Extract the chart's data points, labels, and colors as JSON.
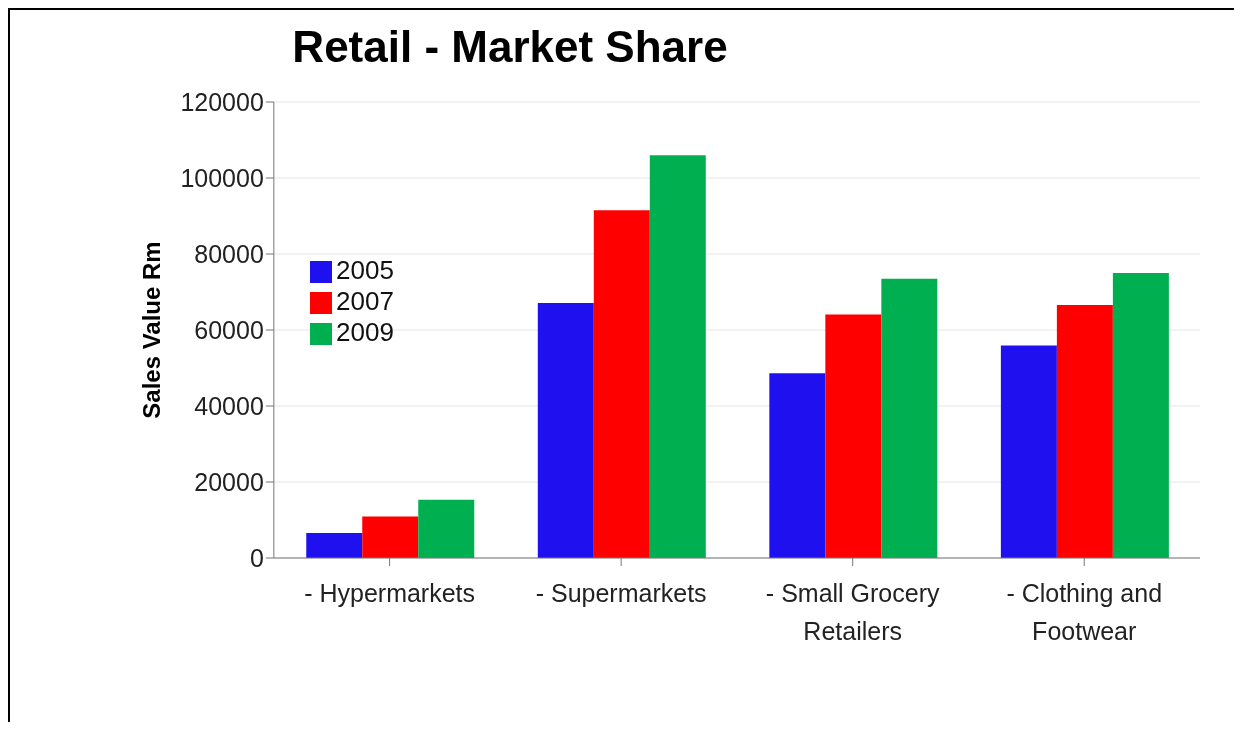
{
  "chart_data": {
    "type": "bar",
    "title": "Retail - Market Share",
    "ylabel": "Sales Value Rm",
    "categories": [
      "- Hypermarkets",
      "- Supermarkets",
      "- Small Grocery Retailers",
      "- Clothing and Footwear"
    ],
    "series": [
      {
        "name": "2005",
        "color": "#1f10f0",
        "values": [
          6600,
          67100,
          48600,
          55900
        ]
      },
      {
        "name": "2007",
        "color": "#ff0000",
        "values": [
          10900,
          91500,
          64100,
          66600
        ]
      },
      {
        "name": "2009",
        "color": "#00b050",
        "values": [
          15300,
          106000,
          73500,
          75000
        ]
      }
    ],
    "ylim": [
      0,
      120000
    ],
    "yticks": [
      0,
      20000,
      40000,
      60000,
      80000,
      100000,
      120000
    ],
    "grid": "y",
    "legend": "top left"
  }
}
